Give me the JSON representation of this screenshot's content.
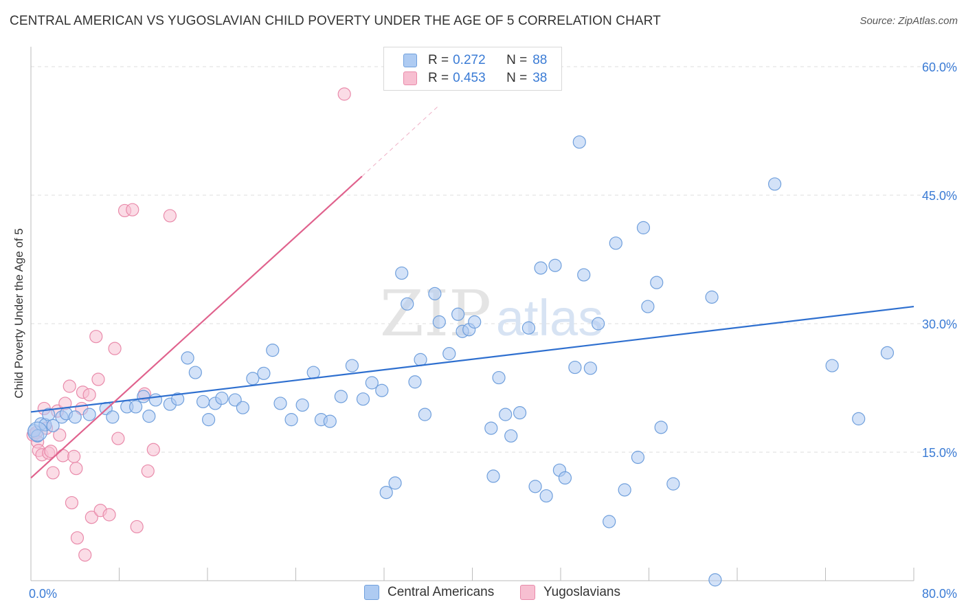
{
  "title": "CENTRAL AMERICAN VS YUGOSLAVIAN CHILD POVERTY UNDER THE AGE OF 5 CORRELATION CHART",
  "source": "Source: ZipAtlas.com",
  "watermark": {
    "zip": "ZIP",
    "atlas": "atlas"
  },
  "colors": {
    "blue_fill": "#aecbf2",
    "blue_stroke": "#6f9fdc",
    "blue_line": "#2e6fcf",
    "pink_fill": "#f7bfd1",
    "pink_stroke": "#e98aaa",
    "pink_line": "#e0628d",
    "value_text": "#3a7bd5",
    "grid": "#dcdcdc"
  },
  "legend": [
    {
      "r_label": "R =",
      "r_value": "0.272",
      "n_label": "N =",
      "n_value": "88"
    },
    {
      "r_label": "R =",
      "r_value": "0.453",
      "n_label": "N =",
      "n_value": "38"
    }
  ],
  "chart_data": {
    "type": "scatter",
    "title": "CENTRAL AMERICAN VS YUGOSLAVIAN CHILD POVERTY UNDER THE AGE OF 5 CORRELATION CHART",
    "xlabel": "",
    "ylabel": "Child Poverty Under the Age of 5",
    "xlim": [
      0,
      80
    ],
    "ylim": [
      0,
      60
    ],
    "x_tick_labels": [
      {
        "value": 0,
        "label": "0.0%"
      },
      {
        "value": 80,
        "label": "80.0%"
      }
    ],
    "y_tick_labels": [
      {
        "value": 15,
        "label": "15.0%"
      },
      {
        "value": 30,
        "label": "30.0%"
      },
      {
        "value": 45,
        "label": "45.0%"
      },
      {
        "value": 60,
        "label": "60.0%"
      }
    ],
    "grid": "horizontal dashed",
    "legend_position": "top-center",
    "series": [
      {
        "name": "Central Americans",
        "r": 0.272,
        "n": 88,
        "trend": {
          "x": [
            0,
            80
          ],
          "y": [
            19.7,
            32.0
          ]
        },
        "points": [
          [
            0.3,
            17.5
          ],
          [
            0.6,
            16.9
          ],
          [
            0.9,
            18.3
          ],
          [
            1.3,
            18.2
          ],
          [
            1.6,
            19.4
          ],
          [
            2.0,
            18.1
          ],
          [
            2.8,
            19.1
          ],
          [
            3.2,
            19.5
          ],
          [
            4.0,
            19.1
          ],
          [
            5.3,
            19.4
          ],
          [
            6.8,
            20.1
          ],
          [
            7.4,
            19.1
          ],
          [
            8.7,
            20.3
          ],
          [
            9.5,
            20.3
          ],
          [
            10.2,
            21.5
          ],
          [
            10.7,
            19.2
          ],
          [
            11.3,
            21.1
          ],
          [
            12.6,
            20.6
          ],
          [
            13.3,
            21.2
          ],
          [
            14.2,
            26.0
          ],
          [
            14.9,
            24.3
          ],
          [
            15.6,
            20.9
          ],
          [
            16.1,
            18.8
          ],
          [
            16.7,
            20.7
          ],
          [
            17.3,
            21.3
          ],
          [
            18.5,
            21.1
          ],
          [
            19.2,
            20.2
          ],
          [
            20.1,
            23.6
          ],
          [
            21.1,
            24.2
          ],
          [
            21.9,
            26.9
          ],
          [
            22.6,
            20.7
          ],
          [
            23.6,
            18.8
          ],
          [
            24.6,
            20.5
          ],
          [
            25.6,
            24.3
          ],
          [
            26.3,
            18.8
          ],
          [
            27.1,
            18.6
          ],
          [
            28.1,
            21.5
          ],
          [
            29.1,
            25.1
          ],
          [
            30.1,
            21.2
          ],
          [
            30.9,
            23.1
          ],
          [
            31.8,
            22.2
          ],
          [
            32.2,
            10.3
          ],
          [
            33.0,
            11.4
          ],
          [
            33.6,
            35.9
          ],
          [
            34.1,
            32.3
          ],
          [
            34.8,
            23.2
          ],
          [
            35.3,
            25.8
          ],
          [
            35.7,
            19.4
          ],
          [
            36.6,
            33.5
          ],
          [
            37.0,
            30.2
          ],
          [
            37.9,
            26.5
          ],
          [
            38.7,
            31.1
          ],
          [
            39.1,
            29.1
          ],
          [
            39.7,
            29.3
          ],
          [
            40.2,
            30.2
          ],
          [
            41.7,
            17.8
          ],
          [
            41.9,
            12.2
          ],
          [
            42.4,
            23.7
          ],
          [
            43.0,
            19.4
          ],
          [
            43.5,
            16.9
          ],
          [
            44.3,
            19.6
          ],
          [
            45.1,
            29.5
          ],
          [
            45.7,
            11.0
          ],
          [
            46.2,
            36.5
          ],
          [
            46.7,
            9.9
          ],
          [
            47.5,
            36.8
          ],
          [
            47.9,
            12.9
          ],
          [
            48.4,
            12.0
          ],
          [
            49.3,
            24.9
          ],
          [
            49.7,
            51.2
          ],
          [
            50.1,
            35.7
          ],
          [
            50.7,
            24.8
          ],
          [
            51.4,
            30.0
          ],
          [
            52.4,
            6.9
          ],
          [
            53.0,
            39.4
          ],
          [
            53.8,
            10.6
          ],
          [
            55.0,
            14.4
          ],
          [
            55.5,
            41.2
          ],
          [
            55.9,
            32.0
          ],
          [
            56.7,
            34.8
          ],
          [
            57.1,
            17.9
          ],
          [
            58.2,
            11.3
          ],
          [
            61.7,
            33.1
          ],
          [
            62.0,
            0.1
          ],
          [
            67.4,
            46.3
          ],
          [
            72.6,
            25.1
          ],
          [
            75.0,
            18.9
          ],
          [
            77.6,
            26.6
          ]
        ]
      },
      {
        "name": "Yugoslavians",
        "r": 0.453,
        "n": 38,
        "trend_solid": {
          "x": [
            0,
            30
          ],
          "y": [
            12.0,
            47.2
          ]
        },
        "trend_dashed": {
          "x": [
            30,
            37
          ],
          "y": [
            47.2,
            55.5
          ]
        },
        "points": [
          [
            0.2,
            17.0
          ],
          [
            0.5,
            17.3
          ],
          [
            0.6,
            16.2
          ],
          [
            0.7,
            15.2
          ],
          [
            1.0,
            14.7
          ],
          [
            1.2,
            20.1
          ],
          [
            1.4,
            17.8
          ],
          [
            1.6,
            14.9
          ],
          [
            1.8,
            15.1
          ],
          [
            2.0,
            12.6
          ],
          [
            2.4,
            19.8
          ],
          [
            2.6,
            17.0
          ],
          [
            2.9,
            14.6
          ],
          [
            3.1,
            20.7
          ],
          [
            3.5,
            22.7
          ],
          [
            3.7,
            9.1
          ],
          [
            3.9,
            14.5
          ],
          [
            4.1,
            13.1
          ],
          [
            4.2,
            5.0
          ],
          [
            4.6,
            20.1
          ],
          [
            4.7,
            22.0
          ],
          [
            4.9,
            3.0
          ],
          [
            5.3,
            21.7
          ],
          [
            5.5,
            7.4
          ],
          [
            5.9,
            28.5
          ],
          [
            6.1,
            23.5
          ],
          [
            6.3,
            8.2
          ],
          [
            7.1,
            7.7
          ],
          [
            7.6,
            27.1
          ],
          [
            7.9,
            16.6
          ],
          [
            8.5,
            43.2
          ],
          [
            9.2,
            43.3
          ],
          [
            9.6,
            6.3
          ],
          [
            10.3,
            21.8
          ],
          [
            10.6,
            12.8
          ],
          [
            11.1,
            15.3
          ],
          [
            12.6,
            42.6
          ],
          [
            28.4,
            56.8
          ]
        ]
      }
    ]
  },
  "bottom_legend": [
    "Central Americans",
    "Yugoslavians"
  ]
}
